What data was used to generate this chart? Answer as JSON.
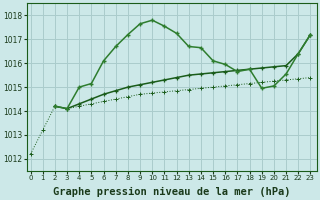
{
  "bg_color": "#cce8e8",
  "grid_color": "#aacccc",
  "line_dark_color": "#1a5c1a",
  "line_mid_color": "#2e7d2e",
  "xlabel": "Graphe pression niveau de la mer (hPa)",
  "xlabel_fontsize": 7.5,
  "ylabel_ticks": [
    1012,
    1013,
    1014,
    1015,
    1016,
    1017,
    1018
  ],
  "xlim": [
    -0.3,
    23.5
  ],
  "ylim": [
    1011.5,
    1018.5
  ],
  "series1_x": [
    0,
    1,
    2,
    3,
    4,
    5,
    6,
    7,
    8,
    9,
    10,
    11,
    12,
    13,
    14,
    15,
    16,
    17,
    18,
    19,
    20,
    21,
    22,
    23
  ],
  "series1_y": [
    1012.2,
    1013.2,
    1014.2,
    1014.1,
    1014.2,
    1014.3,
    1014.4,
    1014.5,
    1014.6,
    1014.7,
    1014.75,
    1014.8,
    1014.85,
    1014.9,
    1014.95,
    1015.0,
    1015.05,
    1015.1,
    1015.15,
    1015.2,
    1015.25,
    1015.3,
    1015.35,
    1015.4
  ],
  "series2_x": [
    2,
    3,
    4,
    5,
    6,
    7,
    8,
    9,
    10,
    11,
    12,
    13,
    14,
    15,
    16,
    17,
    18,
    19,
    20,
    21,
    22,
    23
  ],
  "series2_y": [
    1014.2,
    1014.1,
    1015.0,
    1015.15,
    1016.1,
    1016.7,
    1017.2,
    1017.65,
    1017.8,
    1017.55,
    1017.25,
    1016.7,
    1016.65,
    1016.1,
    1015.95,
    1015.65,
    1015.75,
    1014.95,
    1015.05,
    1015.55,
    1016.4,
    1017.2
  ],
  "series3_x": [
    2,
    3,
    4,
    5,
    6,
    7,
    8,
    9,
    10,
    11,
    12,
    13,
    14,
    15,
    16,
    17,
    18,
    19,
    20,
    21,
    22,
    23
  ],
  "series3_y": [
    1014.2,
    1014.1,
    1014.3,
    1014.5,
    1014.7,
    1014.85,
    1015.0,
    1015.1,
    1015.2,
    1015.3,
    1015.4,
    1015.5,
    1015.55,
    1015.6,
    1015.65,
    1015.7,
    1015.75,
    1015.8,
    1015.85,
    1015.9,
    1016.4,
    1017.2
  ]
}
